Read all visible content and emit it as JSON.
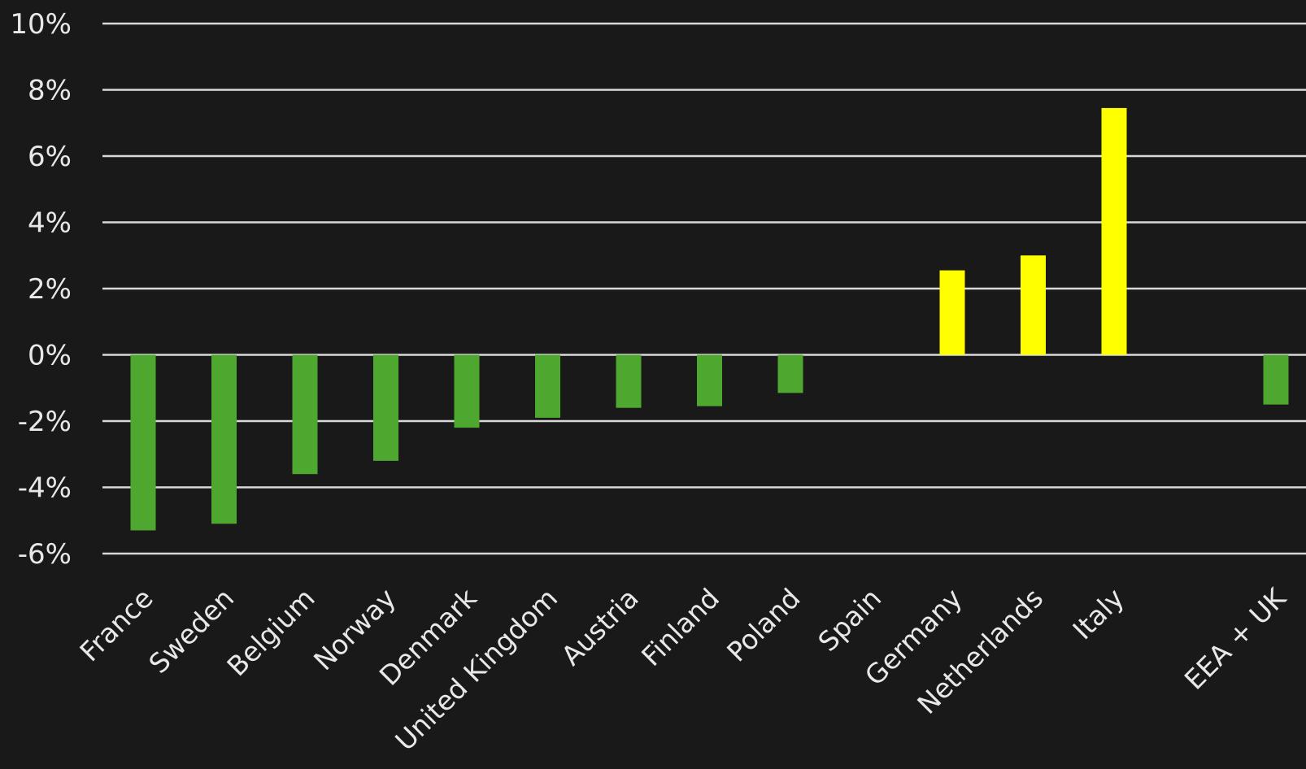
{
  "chart_data": {
    "type": "bar",
    "categories": [
      "France",
      "Sweden",
      "Belgium",
      "Norway",
      "Denmark",
      "United Kingdom",
      "Austria",
      "Finland",
      "Poland",
      "Spain",
      "Germany",
      "Netherlands",
      "Italy",
      "",
      "EEA + UK"
    ],
    "values": [
      -5.3,
      -5.1,
      -3.6,
      -3.2,
      -2.2,
      -1.9,
      -1.6,
      -1.55,
      -1.15,
      0,
      2.55,
      3.0,
      7.45,
      null,
      -1.5
    ],
    "ylim": [
      -6,
      10
    ],
    "yticks": [
      -6,
      -4,
      -2,
      0,
      2,
      4,
      6,
      8,
      10
    ],
    "ytick_labels": [
      "-6%",
      "-4%",
      "-2%",
      "0%",
      "2%",
      "4%",
      "6%",
      "8%",
      "10%"
    ],
    "title": "",
    "xlabel": "",
    "ylabel": "",
    "grid": true,
    "colors": {
      "negative": "#4ea72e",
      "positive": "#ffff00",
      "grid": "#d9d9d9",
      "background": "#191919",
      "text": "#e8e8e8"
    }
  }
}
